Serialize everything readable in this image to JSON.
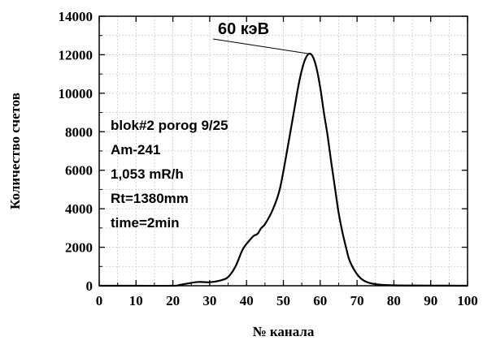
{
  "chart_data": {
    "type": "line",
    "title": "",
    "xlabel": "№ канала",
    "ylabel": "Количество счетов",
    "xlim": [
      0,
      100
    ],
    "ylim": [
      0,
      14000
    ],
    "xticks": [
      0,
      10,
      20,
      30,
      40,
      50,
      60,
      70,
      80,
      90,
      100
    ],
    "yticks": [
      0,
      2000,
      4000,
      6000,
      8000,
      10000,
      12000,
      14000
    ],
    "grid": true,
    "legend": "none",
    "colors": {
      "line": "#000000",
      "grid": "#c8c8c8",
      "axis": "#000000"
    },
    "series": [
      {
        "x": [
          0,
          10,
          20,
          22,
          25,
          27,
          30,
          33,
          35,
          37,
          39,
          41,
          42,
          43,
          44,
          45,
          47,
          49,
          51,
          53,
          54,
          55,
          56,
          57,
          58,
          59,
          60,
          61,
          62,
          63,
          64,
          65,
          66,
          67,
          68,
          70,
          72,
          75,
          80,
          90,
          100
        ],
        "y": [
          0,
          0,
          0,
          50,
          150,
          200,
          180,
          280,
          450,
          1000,
          1900,
          2400,
          2600,
          2700,
          3000,
          3200,
          3900,
          5000,
          7000,
          9200,
          10300,
          11200,
          11800,
          12050,
          11900,
          11300,
          10300,
          9000,
          7800,
          6400,
          5100,
          3800,
          2800,
          2000,
          1300,
          600,
          250,
          80,
          20,
          10,
          0
        ]
      }
    ],
    "annotations": {
      "peak_label": "60 кэВ",
      "peak_x": 57,
      "peak_y": 12050,
      "info_lines": [
        "blok#2 porog 9/25",
        "Am-241",
        "1,053 mR/h",
        "Rt=1380mm",
        "time=2min"
      ]
    }
  }
}
